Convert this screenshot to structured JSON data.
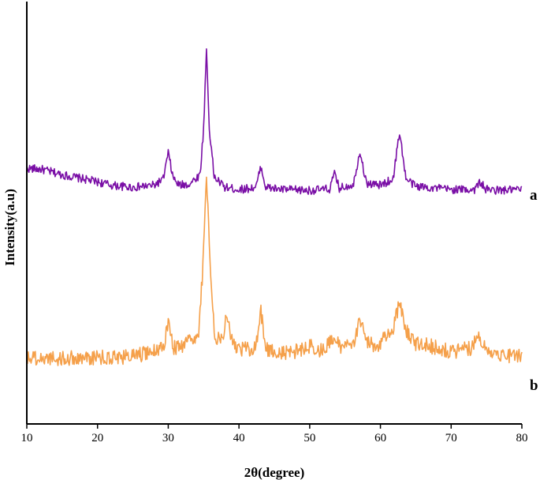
{
  "chart_data": {
    "type": "line",
    "title": "",
    "xlabel": "2θ(degree)",
    "ylabel": "Intensity(a.u)",
    "xlim": [
      10,
      80
    ],
    "xticks": [
      10,
      20,
      30,
      40,
      50,
      60,
      70,
      80
    ],
    "ylim": [
      0,
      1
    ],
    "grid": false,
    "legend": "none",
    "series": [
      {
        "name": "a",
        "color": "#7a0fa6",
        "noise": 0.01,
        "x": [
          10,
          12,
          15,
          18,
          20,
          22,
          25,
          28,
          29.3,
          30,
          30.7,
          31.5,
          33,
          34.5,
          35.0,
          35.4,
          35.8,
          36.5,
          38,
          40,
          42.4,
          43.1,
          43.8,
          46,
          50,
          52.8,
          53.5,
          54.2,
          56.2,
          57.1,
          58.0,
          60,
          61.8,
          62.7,
          63.6,
          65,
          70,
          73.3,
          74.1,
          74.9,
          77,
          80
        ],
        "values": [
          0.605,
          0.603,
          0.59,
          0.58,
          0.573,
          0.565,
          0.56,
          0.565,
          0.58,
          0.642,
          0.582,
          0.565,
          0.568,
          0.59,
          0.7,
          0.888,
          0.7,
          0.585,
          0.56,
          0.555,
          0.56,
          0.61,
          0.56,
          0.555,
          0.553,
          0.556,
          0.592,
          0.558,
          0.568,
          0.648,
          0.57,
          0.565,
          0.58,
          0.693,
          0.58,
          0.563,
          0.555,
          0.555,
          0.573,
          0.555,
          0.553,
          0.555
        ]
      },
      {
        "name": "b",
        "color": "#f5a04a",
        "noise": 0.018,
        "x": [
          10,
          15,
          20,
          25,
          27,
          29.3,
          30,
          30.7,
          32,
          34.3,
          34.9,
          35.4,
          35.9,
          36.6,
          37.7,
          38.3,
          38.9,
          40,
          42.4,
          43.1,
          43.8,
          46,
          48.6,
          50,
          51.5,
          53.5,
          54.5,
          56.3,
          57.1,
          57.9,
          59.5,
          61.9,
          62.7,
          63.5,
          65,
          67,
          70,
          72.8,
          73.8,
          74.8,
          77,
          80
        ],
        "values": [
          0.158,
          0.155,
          0.157,
          0.16,
          0.168,
          0.18,
          0.245,
          0.182,
          0.18,
          0.215,
          0.37,
          0.6,
          0.37,
          0.205,
          0.21,
          0.26,
          0.2,
          0.175,
          0.18,
          0.268,
          0.18,
          0.165,
          0.175,
          0.185,
          0.172,
          0.2,
          0.18,
          0.2,
          0.25,
          0.195,
          0.185,
          0.23,
          0.29,
          0.225,
          0.19,
          0.185,
          0.17,
          0.18,
          0.21,
          0.178,
          0.165,
          0.16
        ]
      }
    ]
  }
}
